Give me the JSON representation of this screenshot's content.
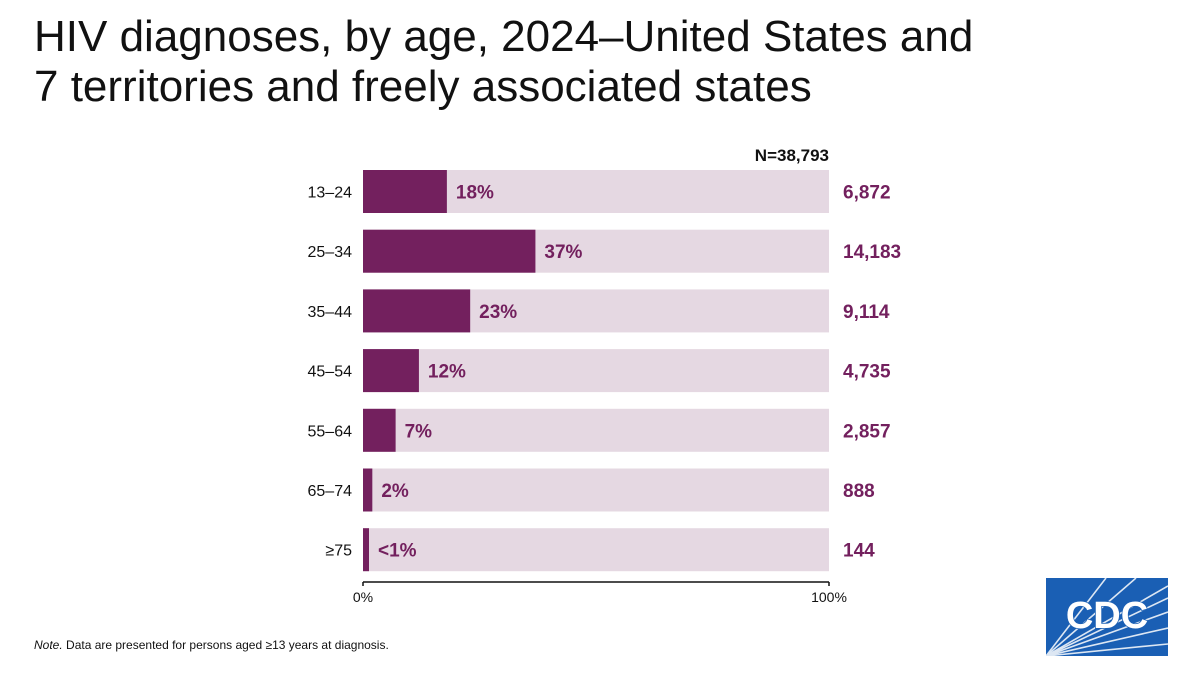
{
  "title_line1": "HIV diagnoses, by age, 2024–United States and",
  "title_line2": "7 territories and freely associated states",
  "chart_data": {
    "type": "bar",
    "orientation": "horizontal",
    "total_label": "N=38,793",
    "categories": [
      "13–24",
      "25–34",
      "35–44",
      "45–54",
      "55–64",
      "65–74",
      "≥75"
    ],
    "values": [
      18,
      37,
      23,
      12,
      7,
      2,
      1
    ],
    "percent_labels": [
      "18%",
      "37%",
      "23%",
      "12%",
      "7%",
      "2%",
      "<1%"
    ],
    "counts": [
      "6,872",
      "14,183",
      "9,114",
      "4,735",
      "2,857",
      "888",
      "144"
    ],
    "xlim": [
      0,
      100
    ],
    "x_tick_labels": [
      "0%",
      "100%"
    ],
    "colors": {
      "bar": "#73205e",
      "track": "#e5d8e2",
      "count_text": "#73205e",
      "pct_text": "#73205e",
      "axis": "#111111"
    }
  },
  "note": {
    "lead": "Note.",
    "text": " Data are presented for persons aged ≥13 years at diagnosis."
  },
  "logo": {
    "text": "CDC",
    "color": "#1a5fb4"
  }
}
